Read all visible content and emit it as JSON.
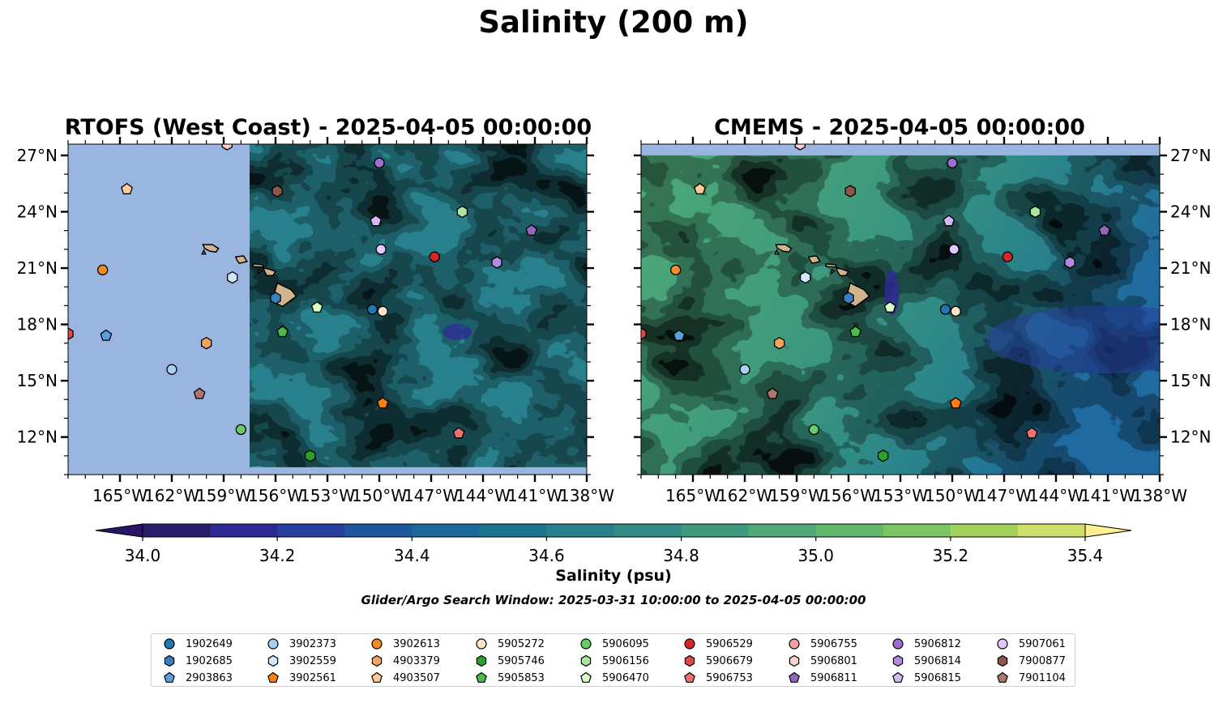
{
  "figure": {
    "title": "Salinity (200 m)",
    "panels": [
      {
        "id": "rtofs",
        "title": "RTOFS (West Coast) - 2025-04-05 00:00:00",
        "coverage_west_edge_lon": -157.5,
        "coverage_south_edge_lat": 10.4
      },
      {
        "id": "cmems",
        "title": "CMEMS - 2025-04-05 00:00:00",
        "coverage_north_edge_lat": 27.0
      }
    ],
    "colorbar": {
      "label": "Salinity (psu)",
      "min": 34.0,
      "max": 35.4,
      "step": 0.1,
      "ticks": [
        "34.0",
        "34.2",
        "34.4",
        "34.6",
        "34.8",
        "35.0",
        "35.2",
        "35.4"
      ],
      "colors": [
        "#2b1b6b",
        "#2d2a96",
        "#263f9e",
        "#1f56a0",
        "#1a6899",
        "#1c7590",
        "#27808c",
        "#338c86",
        "#3e9a7d",
        "#4ea977",
        "#61b76d",
        "#7cc565",
        "#a3d25c",
        "#d0df6a",
        "#f3ea8a"
      ],
      "extend_low_color": "#281566",
      "extend_high_color": "#fdf08e"
    },
    "search_window_note": "Glider/Argo Search Window: 2025-03-31 10:00:00 to 2025-04-05 00:00:00",
    "colors": {
      "land_mask": "#9ab5e0",
      "land": "#d2b48c"
    }
  },
  "map": {
    "lon_range": [
      -168,
      -138
    ],
    "lat_range": [
      10,
      27.6
    ],
    "lon_ticks": [
      {
        "lon": -165,
        "label": "165°W"
      },
      {
        "lon": -162,
        "label": "162°W"
      },
      {
        "lon": -159,
        "label": "159°W"
      },
      {
        "lon": -156,
        "label": "156°W"
      },
      {
        "lon": -153,
        "label": "153°W"
      },
      {
        "lon": -150,
        "label": "150°W"
      },
      {
        "lon": -147,
        "label": "147°W"
      },
      {
        "lon": -144,
        "label": "144°W"
      },
      {
        "lon": -141,
        "label": "141°W"
      },
      {
        "lon": -138,
        "label": "138°W"
      }
    ],
    "lat_ticks": [
      {
        "lat": 27,
        "label": "27°N"
      },
      {
        "lat": 24,
        "label": "24°N"
      },
      {
        "lat": 21,
        "label": "21°N"
      },
      {
        "lat": 18,
        "label": "18°N"
      },
      {
        "lat": 15,
        "label": "15°N"
      },
      {
        "lat": 12,
        "label": "12°N"
      }
    ]
  },
  "chart_data": {
    "type": "scatter",
    "title": "Salinity (200 m)",
    "xlabel": "",
    "ylabel": "",
    "xlim": [
      -168,
      -138
    ],
    "ylim": [
      10,
      27.6
    ],
    "series": [
      {
        "name": "1902649",
        "marker": "circle",
        "color": "#1f77b4",
        "lon": -150.4,
        "lat": 18.8
      },
      {
        "name": "1902685",
        "marker": "hexagon",
        "color": "#3a7fc0",
        "lon": -156.0,
        "lat": 19.4
      },
      {
        "name": "2903863",
        "marker": "pentagon",
        "color": "#5aa0dc",
        "lon": -165.8,
        "lat": 17.4
      },
      {
        "name": "3902373",
        "marker": "circle",
        "color": "#a8d0f0",
        "lon": -162.0,
        "lat": 15.6
      },
      {
        "name": "3902559",
        "marker": "hexagon",
        "color": "#cfe6fb",
        "lon": -158.5,
        "lat": 20.5
      },
      {
        "name": "3902561",
        "marker": "pentagon",
        "color": "#ff7f0e",
        "lon": -149.8,
        "lat": 13.8
      },
      {
        "name": "3902613",
        "marker": "circle",
        "color": "#f28c28",
        "lon": -166.0,
        "lat": 20.9
      },
      {
        "name": "4903379",
        "marker": "hexagon",
        "color": "#f4a460",
        "lon": -160.0,
        "lat": 17.0
      },
      {
        "name": "4903507",
        "marker": "pentagon",
        "color": "#ffcc99",
        "lon": -164.6,
        "lat": 25.2
      },
      {
        "name": "5905272",
        "marker": "circle",
        "color": "#fde3c8",
        "lon": -149.8,
        "lat": 18.7
      },
      {
        "name": "5905746",
        "marker": "hexagon",
        "color": "#2ca02c",
        "lon": -154.0,
        "lat": 11.0
      },
      {
        "name": "5905853",
        "marker": "pentagon",
        "color": "#4cbb4c",
        "lon": -155.6,
        "lat": 17.6
      },
      {
        "name": "5906095",
        "marker": "circle",
        "color": "#66cc66",
        "lon": -158.0,
        "lat": 12.4
      },
      {
        "name": "5906156",
        "marker": "hexagon",
        "color": "#a8e6a1",
        "lon": -145.2,
        "lat": 24.0
      },
      {
        "name": "5906470",
        "marker": "pentagon",
        "color": "#dcffc8",
        "lon": -153.6,
        "lat": 18.9
      },
      {
        "name": "5906529",
        "marker": "circle",
        "color": "#d62728",
        "lon": -146.8,
        "lat": 21.6
      },
      {
        "name": "5906679",
        "marker": "hexagon",
        "color": "#e04848",
        "lon": -168.0,
        "lat": 17.5
      },
      {
        "name": "5906753",
        "marker": "pentagon",
        "color": "#f07070",
        "lon": -145.4,
        "lat": 12.2
      },
      {
        "name": "5906755",
        "marker": "circle",
        "color": "#f4a0a0",
        "lon": -158.8,
        "lat": 27.6
      },
      {
        "name": "5906801",
        "marker": "hexagon",
        "color": "#ffd0d0",
        "lon": -158.8,
        "lat": 27.6
      },
      {
        "name": "5906811",
        "marker": "pentagon",
        "color": "#9467bd",
        "lon": -141.2,
        "lat": 23.0
      },
      {
        "name": "5906812",
        "marker": "circle",
        "color": "#9c6fcf",
        "lon": -150.0,
        "lat": 26.6
      },
      {
        "name": "5906814",
        "marker": "hexagon",
        "color": "#b48ae0",
        "lon": -143.2,
        "lat": 21.3
      },
      {
        "name": "5906815",
        "marker": "pentagon",
        "color": "#d4b8f4",
        "lon": -150.2,
        "lat": 23.5
      },
      {
        "name": "5907061",
        "marker": "circle",
        "color": "#e3c8ff",
        "lon": -149.9,
        "lat": 22.0
      },
      {
        "name": "7900877",
        "marker": "hexagon",
        "color": "#8c564b",
        "lon": -155.9,
        "lat": 25.1
      },
      {
        "name": "7901104",
        "marker": "pentagon",
        "color": "#a9786a",
        "lon": -160.4,
        "lat": 14.3
      }
    ]
  }
}
